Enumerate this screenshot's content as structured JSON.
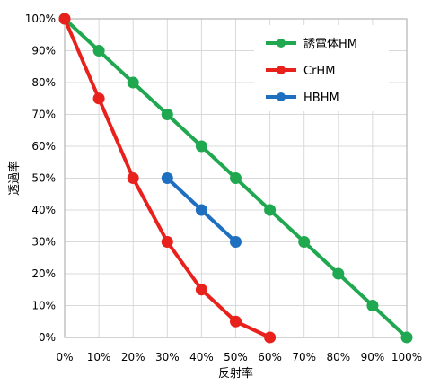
{
  "chart_data": {
    "type": "line",
    "xlabel": "反射率",
    "ylabel": "透過率",
    "xlim": [
      0,
      100
    ],
    "ylim": [
      0,
      100
    ],
    "x_ticks": [
      "0%",
      "10%",
      "20%",
      "30%",
      "40%",
      "50%",
      "60%",
      "70%",
      "80%",
      "90%",
      "100%"
    ],
    "y_ticks": [
      "0%",
      "10%",
      "20%",
      "30%",
      "40%",
      "50%",
      "60%",
      "70%",
      "80%",
      "90%",
      "100%"
    ],
    "grid": true,
    "legend_position": "top-right",
    "series": [
      {
        "name": "誘電体HM",
        "color": "#1fa84f",
        "x": [
          0,
          10,
          20,
          30,
          40,
          50,
          60,
          70,
          80,
          90,
          100
        ],
        "y": [
          100,
          90,
          80,
          70,
          60,
          50,
          40,
          30,
          20,
          10,
          0
        ]
      },
      {
        "name": "CrHM",
        "color": "#e8211d",
        "x": [
          0,
          10,
          20,
          30,
          40,
          50,
          60
        ],
        "y": [
          100,
          75,
          50,
          30,
          15,
          5,
          0
        ]
      },
      {
        "name": "HBHM",
        "color": "#1f6fc0",
        "x": [
          30,
          40,
          50
        ],
        "y": [
          50,
          40,
          30
        ]
      }
    ]
  }
}
